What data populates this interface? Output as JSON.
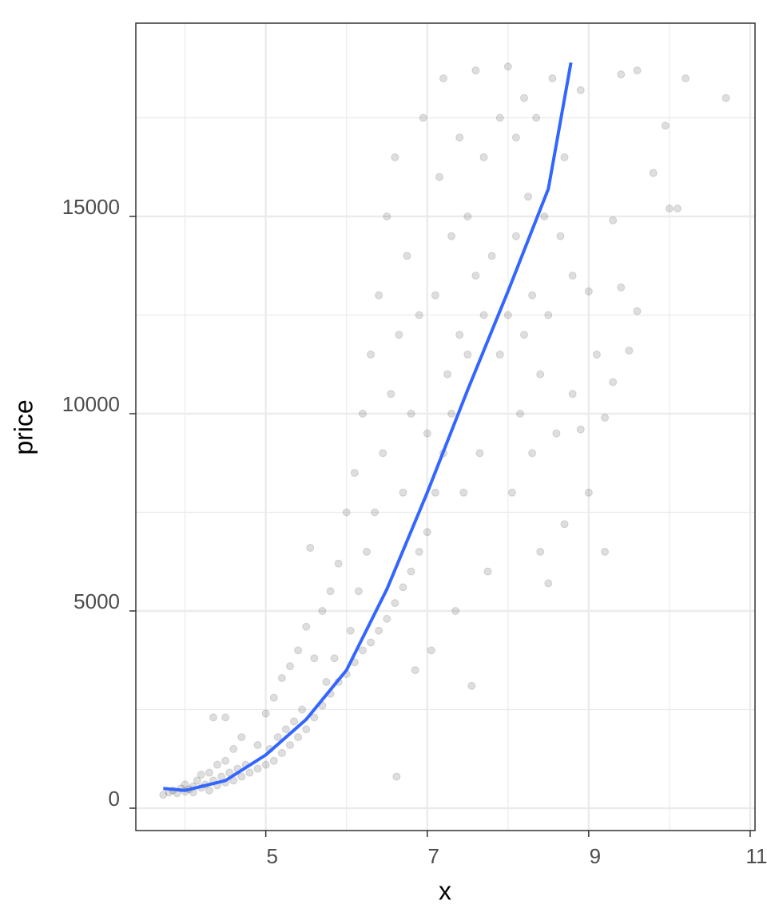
{
  "chart_data": {
    "type": "scatter",
    "x_label": "x",
    "y_label": "price",
    "xlim": [
      3.39,
      11.06
    ],
    "ylim": [
      -567,
      19899
    ],
    "xticks": [
      5,
      7,
      9,
      11
    ],
    "yticks": [
      0,
      5000,
      10000,
      15000
    ],
    "x_minor": [
      4,
      6,
      8,
      10
    ],
    "y_minor": [
      2500,
      7500,
      12500,
      17500
    ],
    "grid": true,
    "points": {
      "color": "#000000",
      "alpha": 0.13,
      "x": [
        3.73,
        3.8,
        3.85,
        3.9,
        3.95,
        4.0,
        4.0,
        4.05,
        4.1,
        4.1,
        4.15,
        4.2,
        4.2,
        4.25,
        4.3,
        4.3,
        4.35,
        4.4,
        4.4,
        4.45,
        4.5,
        4.5,
        4.55,
        4.6,
        4.6,
        4.65,
        4.7,
        4.7,
        4.75,
        4.8,
        4.35,
        4.5,
        4.9,
        4.9,
        5.0,
        5.0,
        5.05,
        5.1,
        5.1,
        5.15,
        5.2,
        5.2,
        5.25,
        5.3,
        5.3,
        5.35,
        5.4,
        5.4,
        5.45,
        5.5,
        5.5,
        5.55,
        5.6,
        5.6,
        5.7,
        5.7,
        5.75,
        5.8,
        5.8,
        5.85,
        5.9,
        5.9,
        6.0,
        6.0,
        6.05,
        6.1,
        6.1,
        6.15,
        6.2,
        6.2,
        6.25,
        6.3,
        6.3,
        6.35,
        6.4,
        6.4,
        6.45,
        6.5,
        6.5,
        6.55,
        6.6,
        6.6,
        6.62,
        6.65,
        6.7,
        6.7,
        6.75,
        6.8,
        6.8,
        6.85,
        6.9,
        6.9,
        6.95,
        7.0,
        7.0,
        7.05,
        7.1,
        7.1,
        7.15,
        7.2,
        7.2,
        7.25,
        7.3,
        7.3,
        7.35,
        7.4,
        7.4,
        7.45,
        7.5,
        7.5,
        7.55,
        7.6,
        7.6,
        7.65,
        7.7,
        7.7,
        7.75,
        7.8,
        7.9,
        7.9,
        8.0,
        8.0,
        8.05,
        8.1,
        8.1,
        8.15,
        8.2,
        8.2,
        8.25,
        8.3,
        8.3,
        8.35,
        8.4,
        8.4,
        8.45,
        8.5,
        8.5,
        8.55,
        8.6,
        8.65,
        8.7,
        8.7,
        8.8,
        8.8,
        8.9,
        8.9,
        9.0,
        9.0,
        9.1,
        9.2,
        9.2,
        9.3,
        9.3,
        9.4,
        9.4,
        9.5,
        9.6,
        9.6,
        9.8,
        9.95,
        10.0,
        10.1,
        10.2,
        10.7
      ],
      "values": [
        340,
        400,
        450,
        380,
        500,
        420,
        600,
        480,
        550,
        400,
        700,
        520,
        850,
        600,
        450,
        900,
        700,
        580,
        1100,
        800,
        650,
        1200,
        900,
        700,
        1500,
        1000,
        800,
        1800,
        1100,
        900,
        2300,
        2300,
        1000,
        1600,
        1100,
        2400,
        1500,
        1200,
        2800,
        1800,
        1400,
        3300,
        2000,
        1600,
        3600,
        2200,
        1800,
        4000,
        2500,
        2000,
        4600,
        6600,
        2300,
        3800,
        2600,
        5000,
        3200,
        2900,
        5500,
        3800,
        3200,
        6200,
        3400,
        7500,
        4500,
        3700,
        8500,
        5500,
        4000,
        10000,
        6500,
        4200,
        11500,
        7500,
        4500,
        13000,
        9000,
        4800,
        15000,
        10500,
        5200,
        16500,
        800,
        12000,
        5600,
        8000,
        14000,
        6000,
        10000,
        3500,
        6500,
        12500,
        17500,
        7000,
        9500,
        4000,
        8000,
        13000,
        16000,
        9000,
        18500,
        11000,
        10000,
        14500,
        5000,
        12000,
        17000,
        8000,
        11500,
        15000,
        3100,
        13500,
        18700,
        9000,
        12500,
        16500,
        6000,
        14000,
        11500,
        17500,
        12500,
        18800,
        8000,
        14500,
        17000,
        10000,
        12000,
        18000,
        15500,
        9000,
        13000,
        17500,
        6500,
        11000,
        15000,
        5700,
        12500,
        18500,
        9500,
        14500,
        7200,
        16500,
        10500,
        13500,
        9600,
        18200,
        13100,
        8000,
        11500,
        6500,
        9900,
        14900,
        10800,
        13200,
        18600,
        11600,
        12600,
        18700,
        16100,
        17300,
        15200,
        15200,
        18500,
        18000
      ]
    },
    "smooth": {
      "color": "#3366ff",
      "x": [
        3.73,
        4.0,
        4.5,
        5.0,
        5.5,
        6.0,
        6.5,
        7.0,
        7.5,
        8.0,
        8.5,
        8.78
      ],
      "values": [
        500,
        450,
        700,
        1350,
        2250,
        3500,
        5550,
        8000,
        10600,
        13100,
        15700,
        18900
      ]
    }
  }
}
